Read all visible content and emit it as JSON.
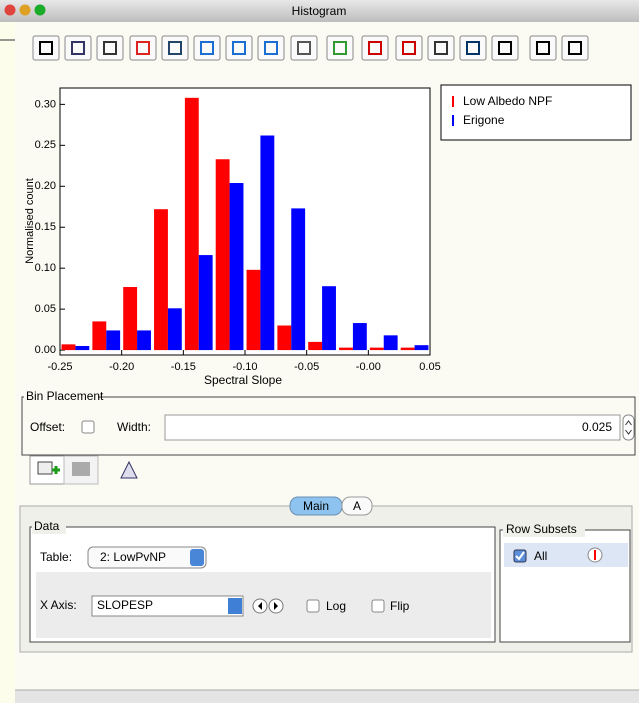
{
  "window": {
    "title": "Histogram"
  },
  "chart_data": {
    "type": "histogram",
    "x_label": "Spectral Slope",
    "y_label": "Normalised count",
    "bins": [
      -0.25,
      -0.225,
      -0.2,
      -0.175,
      -0.15,
      -0.125,
      -0.1,
      -0.075,
      -0.05,
      -0.025,
      0.0,
      0.025,
      0.05
    ],
    "series": [
      {
        "name": "Low Albedo NPF",
        "color": "#ff0000",
        "values": [
          0.007,
          0.035,
          0.077,
          0.172,
          0.308,
          0.233,
          0.098,
          0.03,
          0.01,
          0.003,
          0.003,
          0.003
        ]
      },
      {
        "name": "Erigone",
        "color": "#0000ff",
        "values": [
          0.005,
          0.024,
          0.024,
          0.051,
          0.116,
          0.204,
          0.262,
          0.173,
          0.078,
          0.033,
          0.018,
          0.006
        ]
      }
    ],
    "xlim": [
      -0.25,
      0.05
    ],
    "ylim": [
      -0.006,
      0.32
    ],
    "xticks": [
      {
        "value": -0.25,
        "label": "-0.25"
      },
      {
        "value": -0.2,
        "label": "-0.20"
      },
      {
        "value": -0.15,
        "label": "-0.15"
      },
      {
        "value": -0.1,
        "label": "-0.10"
      },
      {
        "value": -0.05,
        "label": "-0.05"
      },
      {
        "value": 0,
        "label": "-0.00"
      },
      {
        "value": 0.05,
        "label": "0.05"
      }
    ],
    "yticks": [
      {
        "value": 0,
        "label": "0.00"
      },
      {
        "value": 0.05,
        "label": "0.05"
      },
      {
        "value": 0.1,
        "label": "0.10"
      },
      {
        "value": 0.15,
        "label": "0.15"
      },
      {
        "value": 0.2,
        "label": "0.20"
      },
      {
        "value": 0.25,
        "label": "0.25"
      },
      {
        "value": 0.3,
        "label": "0.30"
      }
    ],
    "legend": "outside-right"
  },
  "bin_placement": {
    "title": "Bin Placement",
    "offset_label": "Offset:",
    "width_label": "Width:",
    "width_value": "0.025"
  },
  "tabs": [
    "Main",
    "A"
  ],
  "data_panel": {
    "title": "Data",
    "table_label": "Table:",
    "table_value": "2: LowPvNP",
    "x_axis_label": "X Axis:",
    "x_axis_value": "SLOPESP",
    "log_label": "Log",
    "flip_label": "Flip"
  },
  "row_subsets": {
    "title": "Row Subsets",
    "subset": "All"
  }
}
